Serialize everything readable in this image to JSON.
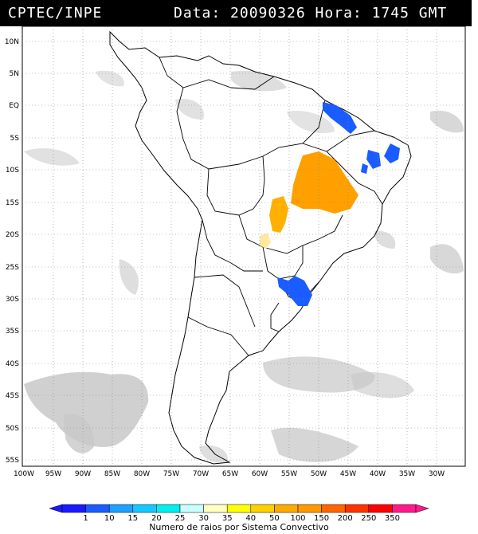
{
  "header": {
    "left": "CPTEC/INPE",
    "right": "Data: 20090326 Hora: 1745 GMT"
  },
  "map": {
    "lat_labels": [
      "10N",
      "5N",
      "EQ",
      "5S",
      "10S",
      "15S",
      "20S",
      "25S",
      "30S",
      "35S",
      "40S",
      "45S",
      "50S",
      "55S"
    ],
    "lon_labels": [
      "100W",
      "95W",
      "90W",
      "85W",
      "80W",
      "75W",
      "70W",
      "65W",
      "60W",
      "55W",
      "50W",
      "45W",
      "40W",
      "35W",
      "30W"
    ]
  },
  "legend": {
    "caption": "Numero de raios por Sistema Convectivo",
    "labels": [
      "1",
      "10",
      "15",
      "20",
      "25",
      "30",
      "35",
      "40",
      "50",
      "100",
      "150",
      "200",
      "250",
      "350"
    ],
    "colors": [
      "#1a1aff",
      "#1a5cff",
      "#1ea0ff",
      "#15c8ff",
      "#00f0f0",
      "#c8ffff",
      "#ffffc0",
      "#ffff00",
      "#ffd000",
      "#ffaa00",
      "#ff9900",
      "#ff6600",
      "#ff3300",
      "#ff0000",
      "#ff1a8c"
    ]
  },
  "colors": {
    "cloud": "#c8c8c8",
    "blue_cells": "#1a5cff",
    "orange_cells": "#ffa000",
    "yellow_cells": "#ffe8a0"
  }
}
